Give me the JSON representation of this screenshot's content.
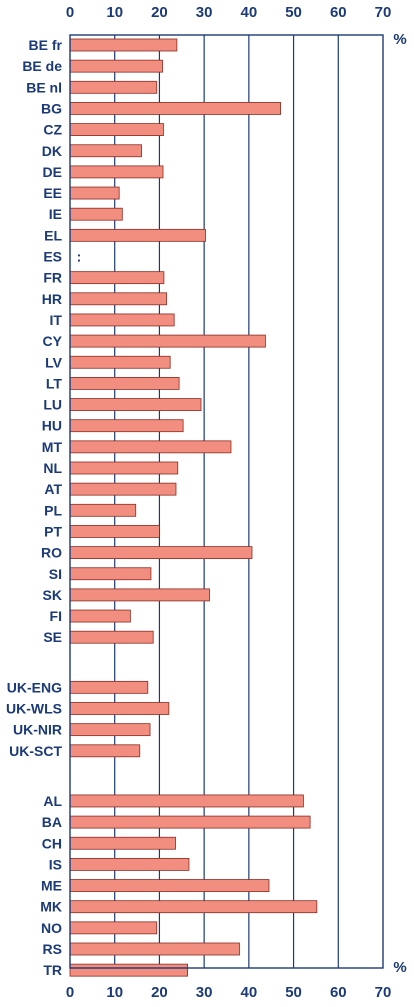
{
  "chart_data": {
    "type": "bar",
    "orientation": "horizontal",
    "unit_label": "%",
    "xlim": [
      0,
      70
    ],
    "x_ticks": [
      0,
      10,
      20,
      30,
      40,
      50,
      60,
      70
    ],
    "x_tick_labels": [
      "0",
      "10",
      "20",
      "30",
      "40",
      "50",
      "60",
      "70"
    ],
    "grid": "vertical",
    "axis_labels_position": "top-and-bottom",
    "categories": [
      "BE fr",
      "BE de",
      "BE nl",
      "BG",
      "CZ",
      "DK",
      "DE",
      "EE",
      "IE",
      "EL",
      "ES",
      "FR",
      "HR",
      "IT",
      "CY",
      "LV",
      "LT",
      "LU",
      "HU",
      "MT",
      "NL",
      "AT",
      "PL",
      "PT",
      "RO",
      "SI",
      "SK",
      "FI",
      "SE",
      "UK-ENG",
      "UK-WLS",
      "UK-NIR",
      "UK-SCT",
      "AL",
      "BA",
      "CH",
      "IS",
      "ME",
      "MK",
      "NO",
      "RS",
      "TR"
    ],
    "values": [
      23.9,
      20.7,
      19.4,
      47.1,
      20.9,
      16.0,
      20.8,
      11.0,
      11.7,
      30.3,
      null,
      21.0,
      21.6,
      23.3,
      43.7,
      22.4,
      24.4,
      29.3,
      25.3,
      36.0,
      24.1,
      23.7,
      14.7,
      20.0,
      40.7,
      18.1,
      31.2,
      13.5,
      18.6,
      17.4,
      22.1,
      17.9,
      15.6,
      52.2,
      53.7,
      23.6,
      26.6,
      44.5,
      55.2,
      19.4,
      37.9,
      26.3
    ],
    "missing_marker": ":",
    "group_breaks_after": [
      "SE",
      "UK-SCT"
    ],
    "colors": {
      "bar_fill": "#f28e80",
      "bar_stroke": "#8b2b20",
      "text": "#1c3a78",
      "grid": "#1c3a78",
      "frame": "#1c3a78"
    }
  }
}
